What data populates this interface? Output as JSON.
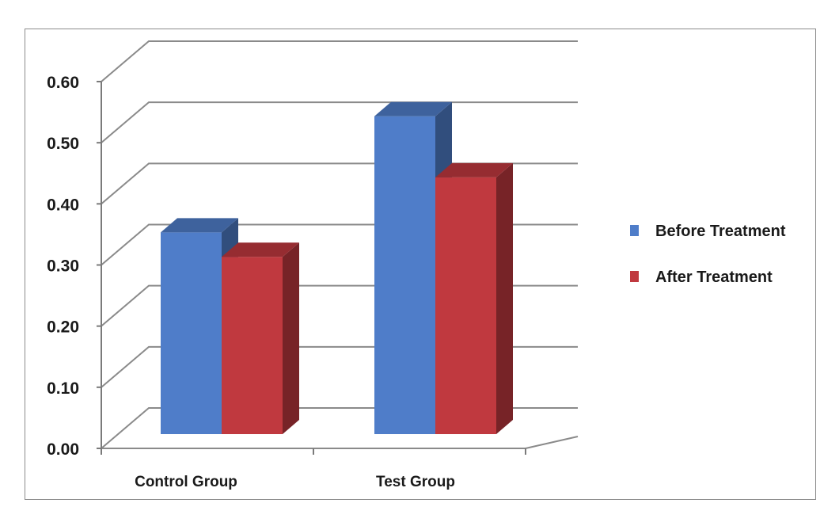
{
  "chart_data": {
    "type": "bar",
    "style": "3d-clustered-column",
    "title": "",
    "xlabel": "",
    "ylabel": "",
    "categories": [
      "Control Group",
      "Test Group"
    ],
    "series": [
      {
        "name": "Before Treatment",
        "values": [
          0.33,
          0.52
        ],
        "color": "#4f7dc9"
      },
      {
        "name": "After Treatment",
        "values": [
          0.29,
          0.42
        ],
        "color": "#c0393f"
      }
    ],
    "ylim": [
      0,
      0.6
    ],
    "yticks": [
      "0.00",
      "0.10",
      "0.20",
      "0.30",
      "0.40",
      "0.50",
      "0.60"
    ],
    "grid": true,
    "legend": "right"
  }
}
